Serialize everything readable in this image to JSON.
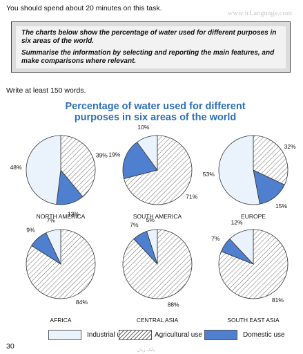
{
  "header": {
    "instruction": "You should spend about 20 minutes on this task.",
    "watermark": "www.irLanguage.com"
  },
  "task": {
    "prompt_1": "The charts below show the percentage of water used for different purposes in six areas of the world.",
    "prompt_2": "Summarise the information by selecting and reporting the main features, and make comparisons where relevant."
  },
  "write_instruction": "Write at least 150 words.",
  "page_number": "30",
  "footer_mark": "بانک زبان",
  "legend": {
    "industrial": "Industrial use",
    "agricultural": "Agricultural use",
    "domestic": "Domestic use"
  },
  "colors": {
    "industrial": "#eaf3fb",
    "domestic": "#4f7fcf",
    "title": "#2c6fb7",
    "hatch": "#666666"
  },
  "chart_data": {
    "type": "pie",
    "title_line1": "Percentage of water used for different",
    "title_line2": "purposes in six areas of the world",
    "series_names": [
      "Industrial use",
      "Agricultural use",
      "Domestic use"
    ],
    "charts": [
      {
        "region": "NORTH AMERICA",
        "industrial": 48,
        "agricultural": 39,
        "domestic": 13
      },
      {
        "region": "SOUTH AMERICA",
        "industrial": 10,
        "agricultural": 71,
        "domestic": 19
      },
      {
        "region": "EUROPE",
        "industrial": 53,
        "agricultural": 32,
        "domestic": 15
      },
      {
        "region": "AFRICA",
        "industrial": 7,
        "agricultural": 84,
        "domestic": 9
      },
      {
        "region": "CENTRAL ASIA",
        "industrial": 5,
        "agricultural": 88,
        "domestic": 7
      },
      {
        "region": "SOUTH EAST ASIA",
        "industrial": 12,
        "agricultural": 81,
        "domestic": 7
      }
    ],
    "legend_position": "bottom"
  }
}
